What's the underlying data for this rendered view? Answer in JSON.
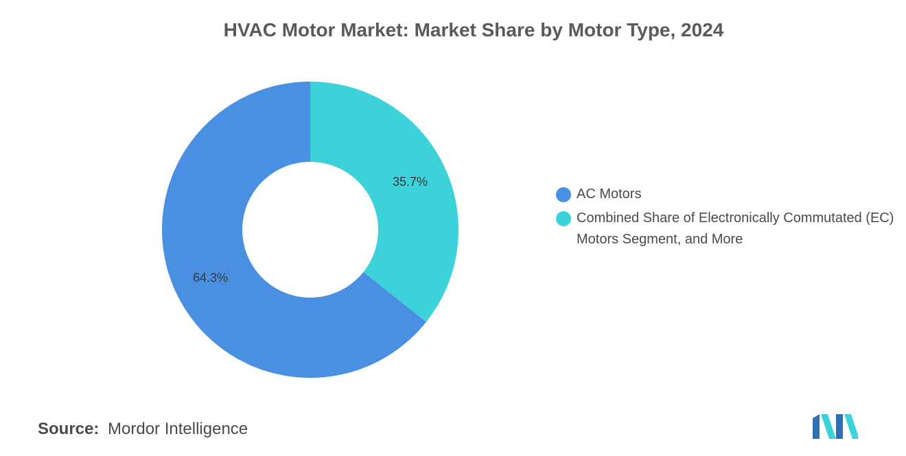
{
  "title": "HVAC Motor Market: Market Share by Motor Type, 2024",
  "chart_data": {
    "type": "pie",
    "title": "HVAC Motor Market: Market Share by Motor Type, 2024",
    "donut": true,
    "categories": [
      "AC Motors",
      "Combined Share of Electronically Commutated (EC) Motors Segment, and More"
    ],
    "values": [
      64.3,
      35.7
    ],
    "value_labels": [
      "64.3%",
      "35.7%"
    ],
    "colors": [
      "#4a90e2",
      "#3dd1d9"
    ],
    "legend_position": "right"
  },
  "legend": {
    "items": [
      {
        "label": "AC Motors",
        "color": "#4a90e2"
      },
      {
        "label": "Combined Share of Electronically Commutated (EC) Motors Segment, and More",
        "color": "#3dd1d9"
      }
    ]
  },
  "source": {
    "key": "Source:",
    "value": "Mordor Intelligence"
  },
  "logo": {
    "icon": "mordor-intelligence-logo-icon",
    "colors": [
      "#2f6fb3",
      "#3dd1d9"
    ]
  }
}
